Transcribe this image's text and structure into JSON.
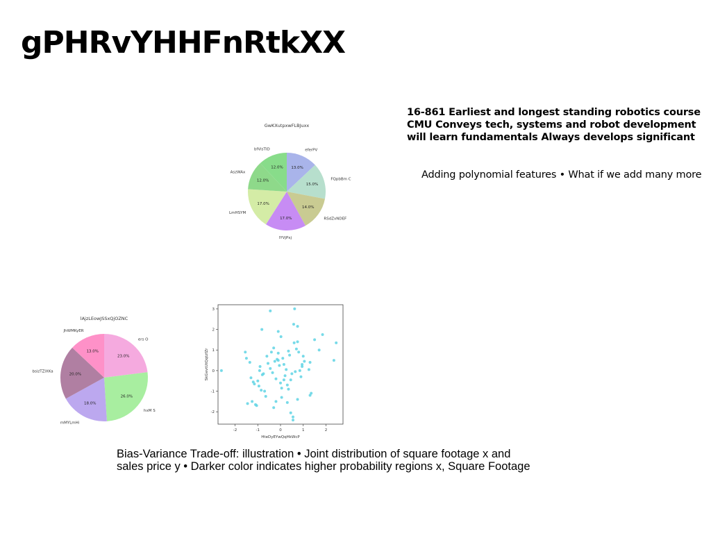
{
  "page": {
    "title": "gPHRvYHHFnRtkXX",
    "blurb_lines": [
      "16-861 Earliest and longest standing robotics course",
      "CMU Conveys tech, systems and robot development",
      "will learn fundamentals Always develops significant"
    ],
    "bullets": "Adding polynomial features • What if we add many more",
    "caption_lines": [
      "Bias-Variance Trade-off: illustration • Joint distribution of square footage x and",
      "sales price y • Darker color indicates higher probability regions x, Square Footage"
    ]
  },
  "chart_data": [
    {
      "type": "pie",
      "title": "GwKXutpxwFLBJuxx",
      "labels": [
        "eferPV",
        "FQpbBm C",
        "RSdZvNDEF",
        "lYVjPxj",
        "LmHSYM",
        "AszWAx",
        "bfVisTID"
      ],
      "values": [
        13.0,
        15.0,
        14.0,
        17.0,
        17.0,
        12.0,
        12.0
      ],
      "pct_labels": [
        "13.0%",
        "15.0%",
        "14.0%",
        "17.0%",
        "17.0%",
        "12.0%",
        "12.0%"
      ],
      "colors": [
        "#a9b4ea",
        "#b7dfcd",
        "#c9cb92",
        "#c78cf4",
        "#d4eca6",
        "#8ed98a",
        "#88dc8a"
      ],
      "start_angle": 90,
      "direction": "clockwise"
    },
    {
      "type": "pie",
      "title": "lAjzLEowJSSxQjOZNC",
      "labels": [
        "ers O",
        "hxM S",
        "mMYLmHi",
        "bsizTZlXKa",
        "JhWMKyER"
      ],
      "values": [
        23.0,
        26.0,
        18.0,
        20.0,
        13.0
      ],
      "pct_labels": [
        "23.0%",
        "26.0%",
        "18.0%",
        "20.0%",
        "13.0%"
      ],
      "colors": [
        "#f5aadf",
        "#a8eea0",
        "#bca8ef",
        "#b07fa2",
        "#fe91c8"
      ],
      "start_angle": 90,
      "direction": "clockwise"
    },
    {
      "type": "scatter",
      "title": "",
      "xlabel": "HteDyEYwQqHkWcP",
      "ylabel": "SkGevtUtQqtzfZr",
      "xlim": [
        -2.75,
        2.75
      ],
      "ylim": [
        -2.6,
        3.2
      ],
      "xticks": [
        -2,
        -1,
        0,
        1,
        2
      ],
      "yticks": [
        -2,
        -1,
        0,
        1,
        2,
        3
      ],
      "color": "#5fd3e4",
      "x": [
        -0.45,
        0.62,
        -0.82,
        0.58,
        0.75,
        -0.1,
        0.02,
        -2.6,
        -1.5,
        -1.55,
        -0.92,
        1.5,
        1.85,
        2.45,
        2.35,
        1.7,
        1.3,
        1.35,
        1.3,
        0.95,
        0.75,
        0.85,
        -0.8,
        -1.0,
        -1.2,
        -1.25,
        -1.1,
        -1.3,
        -0.6,
        -0.55,
        -0.45,
        -0.35,
        -0.3,
        -0.25,
        -0.2,
        -0.15,
        -0.1,
        -0.05,
        0.0,
        0.05,
        0.1,
        0.15,
        0.2,
        0.25,
        0.3,
        0.35,
        0.4,
        0.45,
        0.5,
        0.55,
        -1.45,
        -1.35,
        -0.9,
        -0.85,
        -0.7,
        -0.65,
        0.6,
        0.65,
        0.7,
        0.75,
        1.0,
        1.05,
        0.9,
        0.55,
        0.45,
        -0.4,
        -0.95,
        -1.05,
        -0.3,
        0.3,
        -0.1,
        0.15,
        0.05,
        -0.2,
        0.35,
        0.8,
        -0.75,
        -1.15,
        0.95,
        1.25
      ],
      "y": [
        2.9,
        3.0,
        2.0,
        2.25,
        2.15,
        1.9,
        1.65,
        0.0,
        0.6,
        0.9,
        0.0,
        1.5,
        1.75,
        1.35,
        0.5,
        1.0,
        0.4,
        -1.1,
        -1.2,
        0.2,
        -1.4,
        0.0,
        -0.2,
        -0.5,
        -0.55,
        -1.5,
        -1.65,
        -0.35,
        0.7,
        0.35,
        0.1,
        -0.1,
        1.1,
        0.45,
        -0.4,
        0.55,
        0.85,
        0.25,
        -0.6,
        -0.85,
        0.6,
        0.3,
        -0.25,
        0.05,
        -0.7,
        0.95,
        0.75,
        -0.45,
        -0.15,
        -2.4,
        -1.6,
        0.4,
        0.2,
        -0.95,
        -1.0,
        -1.25,
        1.35,
        -0.05,
        1.05,
        1.4,
        0.7,
        0.45,
        -0.3,
        -2.25,
        -2.05,
        0.9,
        -0.75,
        -1.7,
        -1.8,
        -1.55,
        0.5,
        -0.45,
        -1.3,
        -1.5,
        -0.9,
        0.9,
        -0.15,
        -0.65,
        0.3,
        0.05
      ]
    }
  ]
}
